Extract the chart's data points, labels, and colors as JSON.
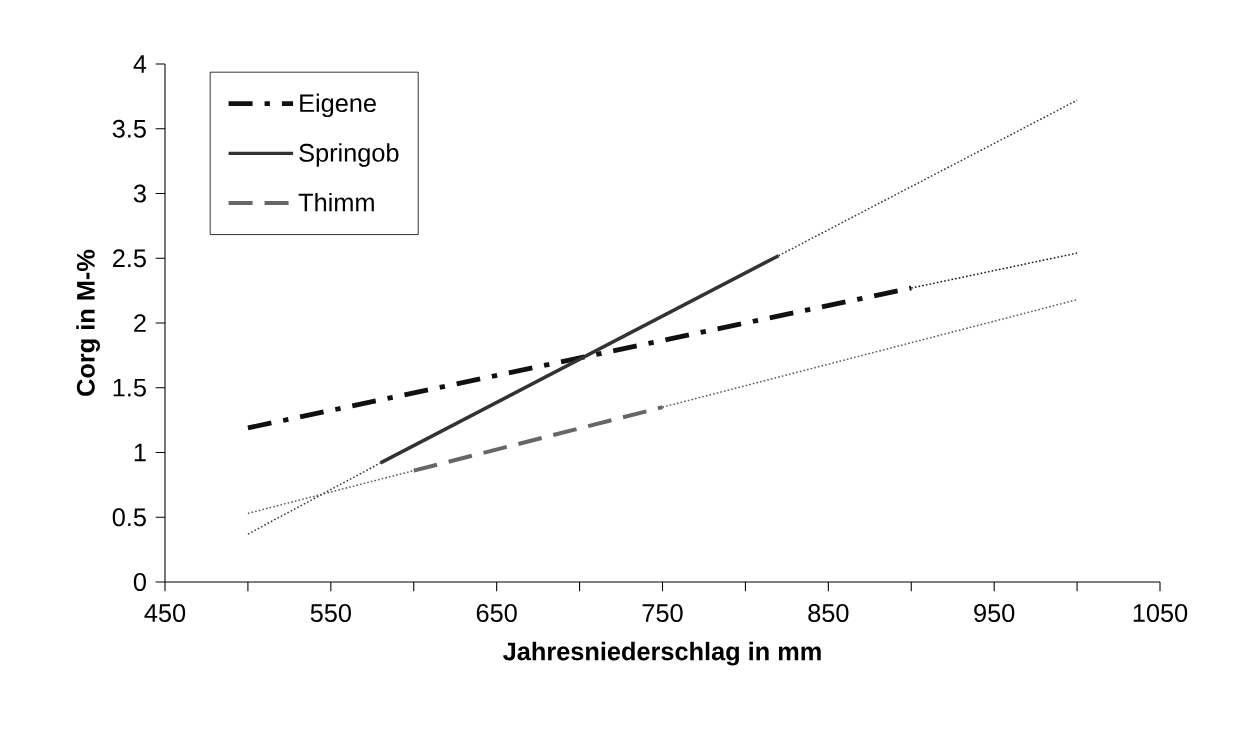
{
  "chart_data": {
    "type": "line",
    "xlabel": "Jahresniederschlag in mm",
    "ylabel": "Corg in M-%",
    "series": [
      {
        "name": "Eigene",
        "color": "#111111",
        "line_style": "dashdot",
        "x": [
          500,
          900
        ],
        "values": [
          1.19,
          2.27
        ]
      },
      {
        "name": "Springob",
        "color": "#333333",
        "line_style": "solid",
        "x": [
          580,
          820
        ],
        "values": [
          0.92,
          2.52
        ]
      },
      {
        "name": "Thimm",
        "color": "#666666",
        "line_style": "dashed",
        "x": [
          600,
          750
        ],
        "values": [
          0.86,
          1.35
        ]
      },
      {
        "color": "#111111",
        "line_style": "dotted",
        "x": [
          900,
          1000
        ],
        "values": [
          2.27,
          2.54
        ]
      },
      {
        "color": "#333333",
        "line_style": "dotted",
        "x": [
          500,
          580
        ],
        "values": [
          0.37,
          0.92
        ]
      },
      {
        "color": "#333333",
        "line_style": "dotted",
        "x": [
          820,
          1000
        ],
        "values": [
          2.52,
          3.72
        ]
      },
      {
        "color": "#555555",
        "line_style": "dotted",
        "x": [
          500,
          600
        ],
        "values": [
          0.53,
          0.86
        ]
      },
      {
        "color": "#555555",
        "line_style": "dotted",
        "x": [
          750,
          1000
        ],
        "values": [
          1.35,
          2.18
        ]
      }
    ],
    "xlim": [
      450,
      1050
    ],
    "xticks": [
      450,
      {
        "value": 500,
        "label": null
      },
      550,
      {
        "value": 600,
        "label": null
      },
      650,
      {
        "value": 700,
        "label": null
      },
      750,
      {
        "value": 800,
        "label": null
      },
      850,
      {
        "value": 900,
        "label": null
      },
      950,
      {
        "value": 1000,
        "label": null
      },
      1050
    ],
    "ylim": [
      0,
      4
    ],
    "yticks": [
      0,
      0.5,
      1,
      1.5,
      2,
      2.5,
      3,
      3.5,
      4
    ],
    "grid": false,
    "legend": "top left",
    "marker": "none"
  }
}
